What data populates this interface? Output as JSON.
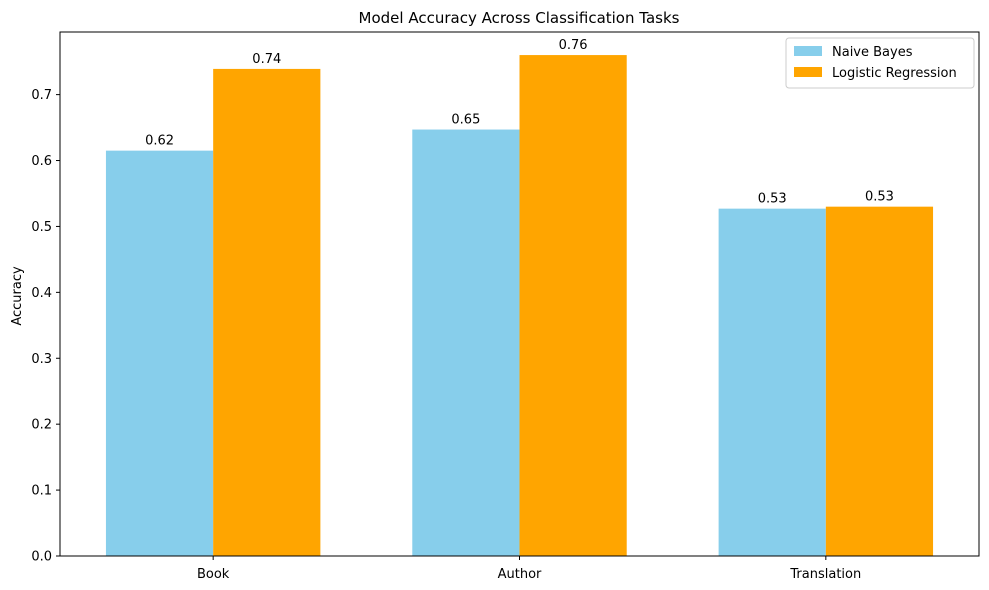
{
  "chart_data": {
    "type": "bar",
    "title": "Model Accuracy Across Classification Tasks",
    "xlabel": "",
    "ylabel": "Accuracy",
    "categories": [
      "Book",
      "Author",
      "Translation"
    ],
    "series": [
      {
        "name": "Naive Bayes",
        "values": [
          0.615,
          0.647,
          0.527
        ],
        "labels": [
          "0.62",
          "0.65",
          "0.53"
        ],
        "color": "#87CEEB"
      },
      {
        "name": "Logistic Regression",
        "values": [
          0.739,
          0.76,
          0.53
        ],
        "labels": [
          "0.74",
          "0.76",
          "0.53"
        ],
        "color": "#FFA500"
      }
    ],
    "ylim": [
      0,
      0.795
    ],
    "yticks": [
      "0.0",
      "0.1",
      "0.2",
      "0.3",
      "0.4",
      "0.5",
      "0.6",
      "0.7"
    ],
    "grid": false,
    "legend_position": "top-right"
  }
}
